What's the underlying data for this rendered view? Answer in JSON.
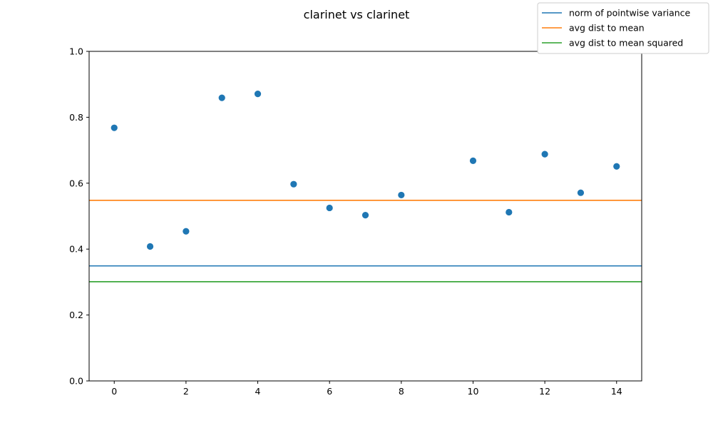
{
  "chart_data": {
    "type": "scatter",
    "title": "clarinet vs clarinet",
    "xlabel": "",
    "ylabel": "",
    "xlim": [
      -0.7,
      14.7
    ],
    "ylim": [
      0,
      1
    ],
    "x_ticks": [
      0,
      2,
      4,
      6,
      8,
      10,
      12,
      14
    ],
    "y_ticks": [
      0.0,
      0.2,
      0.4,
      0.6,
      0.8,
      1.0
    ],
    "grid": false,
    "legend_position": "top-right",
    "points": {
      "color": "#1f77b4",
      "x": [
        0,
        1,
        2,
        3,
        4,
        5,
        6,
        7,
        8,
        10,
        11,
        12,
        13,
        14
      ],
      "y": [
        0.768,
        0.408,
        0.454,
        0.859,
        0.871,
        0.597,
        0.525,
        0.503,
        0.564,
        0.668,
        0.512,
        0.688,
        0.571,
        0.651
      ]
    },
    "series": [
      {
        "name": "norm of pointwise variance",
        "type": "hline",
        "value": 0.349,
        "color": "#1f77b4"
      },
      {
        "name": "avg dist to mean",
        "type": "hline",
        "value": 0.548,
        "color": "#ff7f0e"
      },
      {
        "name": "avg dist to mean squared",
        "type": "hline",
        "value": 0.301,
        "color": "#2ca02c"
      }
    ]
  }
}
